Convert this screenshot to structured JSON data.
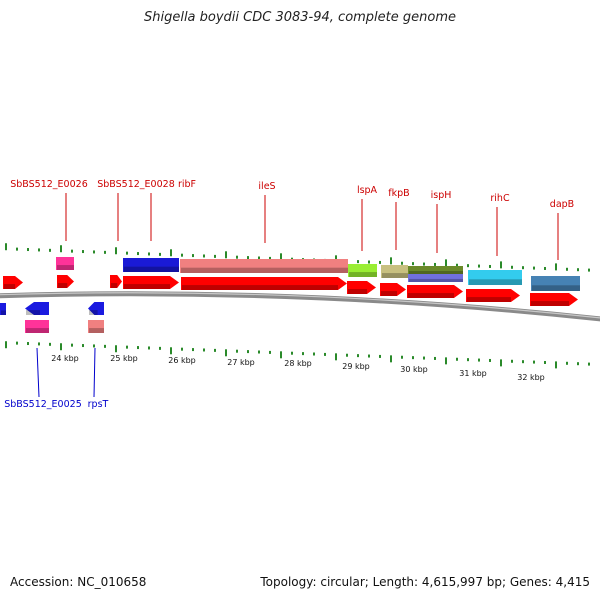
{
  "title": "Shigella boydii CDC 3083-94, complete genome",
  "footer": {
    "accession": "Accession: NC_010658",
    "summary": "Topology: circular; Length: 4,615,997 bp; Genes: 4,415"
  },
  "colors": {
    "cds": "#ff0000",
    "label_top": "#cc0000",
    "label_bottom": "#0000cc",
    "backbone": "#8a8a8a",
    "tick": "#2a8a2a"
  },
  "scale": {
    "tick_labels": [
      "24 kbp",
      "25 kbp",
      "26 kbp",
      "27 kbp",
      "28 kbp",
      "29 kbp",
      "30 kbp",
      "31 kbp",
      "32 kbp"
    ]
  },
  "labels_top": [
    "SbBS512_E0026",
    "SbBS512_E0028",
    "ribF",
    "ileS",
    "lspA",
    "fkpB",
    "ispH",
    "rihC",
    "dapB"
  ],
  "labels_bottom": [
    "SbBS512_E0025",
    "rpsT"
  ],
  "feature_colors": {
    "SbBS512_E0026": "#ff3399",
    "SbBS512_E0028": "#ff0000",
    "ribF": "#1a1ad6",
    "ileS": "#f08080",
    "lspA": "#99ee33",
    "fkpB": "#c8c080",
    "ispH": "#6b8a2a",
    "ispH_second": "#7070dd",
    "rihC": "#33ccee",
    "dapB": "#4682b4",
    "SbBS512_E0025": "#ff3399",
    "rpsT": "#f08080",
    "reverse_cds": "#1a1ae0"
  }
}
